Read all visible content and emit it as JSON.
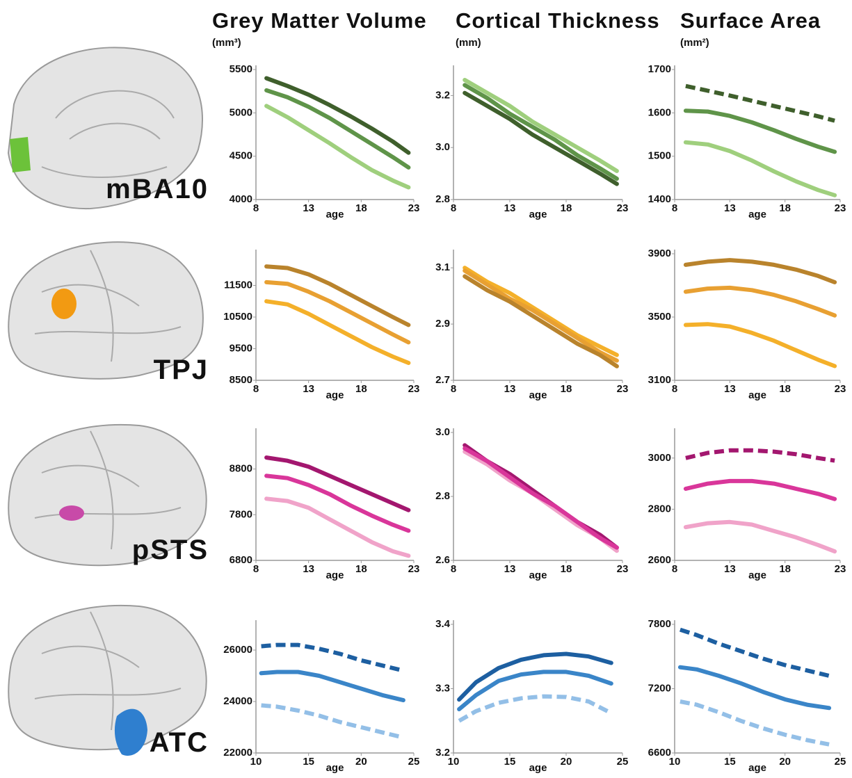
{
  "columns": [
    {
      "title": "Grey Matter Volume",
      "unit": "(mm³)"
    },
    {
      "title": "Cortical Thickness",
      "unit": "(mm)"
    },
    {
      "title": "Surface Area",
      "unit": "(mm²)"
    }
  ],
  "regions": [
    "mBA10",
    "TPJ",
    "pSTS",
    "ATC"
  ],
  "chart_data": [
    {
      "type": "line",
      "xlabel": "age",
      "x": [
        9,
        11,
        13,
        15,
        17,
        19,
        21,
        22.5
      ],
      "xlim": [
        8,
        23
      ],
      "xticks": [
        8,
        13,
        18,
        23
      ],
      "ylim": [
        4000,
        5500
      ],
      "yticks": [
        4000,
        4500,
        5000,
        5500
      ],
      "series": [
        {
          "color": "#3f5f2c",
          "dashed": false,
          "values": [
            5400,
            5310,
            5210,
            5090,
            4960,
            4820,
            4670,
            4540
          ]
        },
        {
          "color": "#5f9449",
          "dashed": false,
          "values": [
            5260,
            5180,
            5070,
            4940,
            4790,
            4640,
            4490,
            4370
          ]
        },
        {
          "color": "#9fcf7d",
          "dashed": false,
          "values": [
            5080,
            4950,
            4800,
            4650,
            4490,
            4340,
            4220,
            4140
          ]
        }
      ]
    },
    {
      "type": "line",
      "xlabel": "age",
      "x": [
        9,
        11,
        13,
        15,
        17,
        19,
        21,
        22.5
      ],
      "xlim": [
        8,
        23
      ],
      "xticks": [
        8,
        13,
        18,
        23
      ],
      "ylim": [
        2.8,
        3.3
      ],
      "yticks": [
        2.8,
        {
          "value": 3,
          "label": "3.0"
        },
        3.2
      ],
      "series": [
        {
          "color": "#9fcf7d",
          "dashed": false,
          "values": [
            3.26,
            3.21,
            3.16,
            3.1,
            3.05,
            3.0,
            2.95,
            2.91
          ]
        },
        {
          "color": "#5f9449",
          "dashed": false,
          "values": [
            3.24,
            3.19,
            3.13,
            3.08,
            3.03,
            2.97,
            2.92,
            2.88
          ]
        },
        {
          "color": "#3f5f2c",
          "dashed": false,
          "values": [
            3.21,
            3.16,
            3.11,
            3.05,
            3.0,
            2.95,
            2.9,
            2.86
          ]
        }
      ]
    },
    {
      "type": "line",
      "xlabel": "age",
      "x": [
        9,
        11,
        13,
        15,
        17,
        19,
        21,
        22.5
      ],
      "xlim": [
        8,
        23
      ],
      "xticks": [
        8,
        13,
        18,
        23
      ],
      "ylim": [
        1400,
        1700
      ],
      "yticks": [
        1400,
        1500,
        1600,
        1700
      ],
      "series": [
        {
          "color": "#3f5f2c",
          "dashed": true,
          "values": [
            1662,
            1651,
            1640,
            1628,
            1616,
            1604,
            1592,
            1582
          ]
        },
        {
          "color": "#5f9449",
          "dashed": false,
          "values": [
            1605,
            1603,
            1593,
            1578,
            1560,
            1540,
            1522,
            1510
          ]
        },
        {
          "color": "#9fcf7d",
          "dashed": false,
          "values": [
            1532,
            1527,
            1512,
            1490,
            1465,
            1442,
            1422,
            1410
          ]
        }
      ]
    },
    {
      "type": "line",
      "xlabel": "age",
      "x": [
        9,
        11,
        13,
        15,
        17,
        19,
        21,
        22.5
      ],
      "xlim": [
        8,
        23
      ],
      "xticks": [
        8,
        13,
        18,
        23
      ],
      "ylim": [
        8500,
        12500
      ],
      "yticks": [
        8500,
        9500,
        10500,
        11500
      ],
      "series": [
        {
          "color": "#b9832c",
          "dashed": false,
          "values": [
            12100,
            12050,
            11850,
            11550,
            11200,
            10850,
            10500,
            10250
          ]
        },
        {
          "color": "#e8a032",
          "dashed": false,
          "values": [
            11600,
            11550,
            11300,
            11000,
            10650,
            10300,
            9950,
            9700
          ]
        },
        {
          "color": "#f4b02a",
          "dashed": false,
          "values": [
            11000,
            10900,
            10600,
            10250,
            9900,
            9550,
            9250,
            9050
          ]
        }
      ]
    },
    {
      "type": "line",
      "xlabel": "age",
      "x": [
        9,
        11,
        13,
        15,
        17,
        19,
        21,
        22.5
      ],
      "xlim": [
        8,
        23
      ],
      "xticks": [
        8,
        13,
        18,
        23
      ],
      "ylim": [
        2.7,
        3.15
      ],
      "yticks": [
        2.7,
        2.9,
        3.1
      ],
      "series": [
        {
          "color": "#f4b02a",
          "dashed": false,
          "values": [
            3.1,
            3.05,
            3.01,
            2.96,
            2.91,
            2.86,
            2.82,
            2.79
          ]
        },
        {
          "color": "#e8a032",
          "dashed": false,
          "values": [
            3.09,
            3.04,
            2.99,
            2.95,
            2.9,
            2.85,
            2.8,
            2.77
          ]
        },
        {
          "color": "#b9832c",
          "dashed": false,
          "values": [
            3.07,
            3.02,
            2.98,
            2.93,
            2.88,
            2.83,
            2.79,
            2.75
          ]
        }
      ]
    },
    {
      "type": "line",
      "xlabel": "age",
      "x": [
        9,
        11,
        13,
        15,
        17,
        19,
        21,
        22.5
      ],
      "xlim": [
        8,
        23
      ],
      "xticks": [
        8,
        13,
        18,
        23
      ],
      "ylim": [
        3100,
        3900
      ],
      "yticks": [
        3100,
        3500,
        3900
      ],
      "series": [
        {
          "color": "#b9832c",
          "dashed": false,
          "values": [
            3830,
            3850,
            3860,
            3850,
            3830,
            3800,
            3760,
            3720
          ]
        },
        {
          "color": "#e8a032",
          "dashed": false,
          "values": [
            3660,
            3680,
            3685,
            3670,
            3640,
            3600,
            3550,
            3510
          ]
        },
        {
          "color": "#f4b02a",
          "dashed": false,
          "values": [
            3450,
            3455,
            3440,
            3400,
            3350,
            3290,
            3230,
            3190
          ]
        }
      ]
    },
    {
      "type": "line",
      "xlabel": "age",
      "x": [
        9,
        11,
        13,
        15,
        17,
        19,
        21,
        22.5
      ],
      "xlim": [
        8,
        23
      ],
      "xticks": [
        8,
        13,
        18,
        23
      ],
      "ylim": [
        6800,
        9600
      ],
      "yticks": [
        6800,
        7800,
        8800
      ],
      "series": [
        {
          "color": "#a3176f",
          "dashed": false,
          "values": [
            9050,
            8980,
            8850,
            8650,
            8450,
            8250,
            8050,
            7900
          ]
        },
        {
          "color": "#d9369a",
          "dashed": false,
          "values": [
            8650,
            8600,
            8450,
            8250,
            8000,
            7780,
            7580,
            7450
          ]
        },
        {
          "color": "#f0a3c9",
          "dashed": false,
          "values": [
            8150,
            8100,
            7950,
            7700,
            7450,
            7200,
            7000,
            6900
          ]
        }
      ]
    },
    {
      "type": "line",
      "xlabel": "age",
      "x": [
        9,
        11,
        13,
        15,
        17,
        19,
        21,
        22.5
      ],
      "xlim": [
        8,
        23
      ],
      "xticks": [
        8,
        13,
        18,
        23
      ],
      "ylim": [
        2.6,
        3.0
      ],
      "yticks": [
        2.6,
        2.8,
        {
          "value": 3,
          "label": "3.0"
        }
      ],
      "series": [
        {
          "color": "#a3176f",
          "dashed": false,
          "values": [
            2.96,
            2.91,
            2.87,
            2.82,
            2.77,
            2.72,
            2.68,
            2.64
          ]
        },
        {
          "color": "#f0a3c9",
          "dashed": false,
          "values": [
            2.94,
            2.9,
            2.85,
            2.81,
            2.76,
            2.71,
            2.67,
            2.63
          ]
        },
        {
          "color": "#d9369a",
          "dashed": false,
          "values": [
            2.95,
            2.91,
            2.86,
            2.81,
            2.77,
            2.72,
            2.67,
            2.64
          ]
        }
      ]
    },
    {
      "type": "line",
      "xlabel": "age",
      "x": [
        9,
        11,
        13,
        15,
        17,
        19,
        21,
        22.5
      ],
      "xlim": [
        8,
        23
      ],
      "xticks": [
        8,
        13,
        18,
        23
      ],
      "ylim": [
        2600,
        3100
      ],
      "yticks": [
        2600,
        2800,
        3000
      ],
      "series": [
        {
          "color": "#a3176f",
          "dashed": true,
          "values": [
            3000,
            3020,
            3030,
            3030,
            3025,
            3015,
            3000,
            2990
          ]
        },
        {
          "color": "#d9369a",
          "dashed": false,
          "values": [
            2880,
            2900,
            2910,
            2910,
            2900,
            2880,
            2860,
            2840
          ]
        },
        {
          "color": "#f0a3c9",
          "dashed": false,
          "values": [
            2730,
            2745,
            2750,
            2740,
            2715,
            2690,
            2660,
            2635
          ]
        }
      ]
    },
    {
      "type": "line",
      "xlabel": "age",
      "x": [
        10.5,
        12,
        14,
        16,
        18,
        20,
        22,
        24
      ],
      "xlim": [
        10,
        25
      ],
      "xticks": [
        10,
        15,
        20,
        25
      ],
      "ylim": [
        22000,
        27000
      ],
      "yticks": [
        22000,
        24000,
        26000
      ],
      "series": [
        {
          "color": "#1d5fa1",
          "dashed": true,
          "values": [
            26150,
            26200,
            26200,
            26050,
            25850,
            25600,
            25400,
            25200
          ]
        },
        {
          "color": "#3a85c8",
          "dashed": false,
          "values": [
            25100,
            25150,
            25150,
            25000,
            24750,
            24500,
            24250,
            24050
          ]
        },
        {
          "color": "#93bfe7",
          "dashed": true,
          "values": [
            23850,
            23800,
            23650,
            23450,
            23200,
            23000,
            22800,
            22600
          ]
        }
      ]
    },
    {
      "type": "line",
      "xlabel": "age",
      "x": [
        10.5,
        12,
        14,
        16,
        18,
        20,
        22,
        24
      ],
      "xlim": [
        10,
        25
      ],
      "xticks": [
        10,
        15,
        20,
        25
      ],
      "ylim": [
        3.2,
        3.4
      ],
      "yticks": [
        3.2,
        3.3,
        3.4
      ],
      "series": [
        {
          "color": "#1d5fa1",
          "dashed": false,
          "values": [
            3.283,
            3.31,
            3.332,
            3.345,
            3.352,
            3.354,
            3.35,
            3.34
          ]
        },
        {
          "color": "#3a85c8",
          "dashed": false,
          "values": [
            3.268,
            3.29,
            3.312,
            3.322,
            3.326,
            3.326,
            3.32,
            3.308
          ]
        },
        {
          "color": "#93bfe7",
          "dashed": true,
          "values": [
            3.25,
            3.265,
            3.278,
            3.285,
            3.288,
            3.287,
            3.28,
            3.262
          ]
        }
      ]
    },
    {
      "type": "line",
      "xlabel": "age",
      "x": [
        10.5,
        12,
        14,
        16,
        18,
        20,
        22,
        24
      ],
      "xlim": [
        10,
        25
      ],
      "xticks": [
        10,
        15,
        20,
        25
      ],
      "ylim": [
        6600,
        7800
      ],
      "yticks": [
        6600,
        7200,
        7800
      ],
      "series": [
        {
          "color": "#1d5fa1",
          "dashed": true,
          "values": [
            7750,
            7700,
            7620,
            7550,
            7480,
            7420,
            7370,
            7320
          ]
        },
        {
          "color": "#3a85c8",
          "dashed": false,
          "values": [
            7400,
            7380,
            7320,
            7250,
            7170,
            7100,
            7050,
            7020
          ]
        },
        {
          "color": "#93bfe7",
          "dashed": true,
          "values": [
            7080,
            7050,
            6980,
            6900,
            6830,
            6770,
            6720,
            6680
          ]
        }
      ]
    }
  ]
}
